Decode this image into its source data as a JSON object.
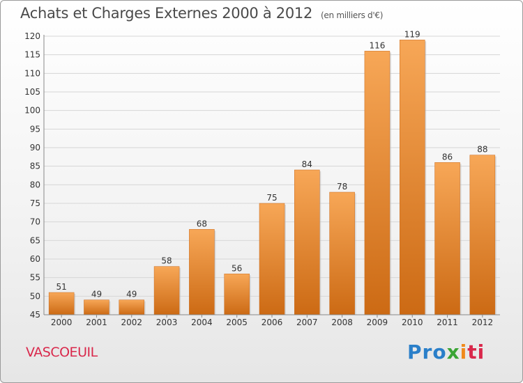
{
  "header": {
    "title": "Achats et Charges Externes 2000 à 2012",
    "unit": "(en milliers d'€)"
  },
  "footer": {
    "town": "VASCOEUIL",
    "logo": {
      "p1": "Pro",
      "p2": "x",
      "p3": "i",
      "p4": "ti"
    }
  },
  "colors": {
    "bar_top": "#f7a757",
    "bar_bottom": "#cc6a14",
    "town": "#d9284b"
  },
  "chart_data": {
    "type": "bar",
    "categories": [
      "2000",
      "2001",
      "2002",
      "2003",
      "2004",
      "2005",
      "2006",
      "2007",
      "2008",
      "2009",
      "2010",
      "2011",
      "2012"
    ],
    "values": [
      51,
      49,
      49,
      58,
      68,
      56,
      75,
      84,
      78,
      116,
      119,
      86,
      88
    ],
    "title": "Achats et Charges Externes 2000 à 2012",
    "subtitle": "(en milliers d'€)",
    "xlabel": "",
    "ylabel": "",
    "ylim": [
      45,
      120
    ],
    "yticks": [
      45,
      50,
      55,
      60,
      65,
      70,
      75,
      80,
      85,
      90,
      95,
      100,
      105,
      110,
      115,
      120
    ],
    "grid": true,
    "legend": "none"
  }
}
